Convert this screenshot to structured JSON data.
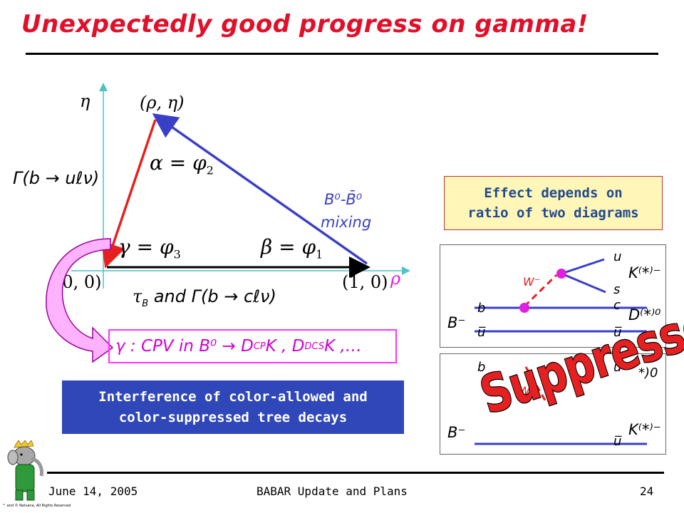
{
  "slide": {
    "title": "Unexpectedly good progress on gamma!"
  },
  "triangle": {
    "eta_axis": "η",
    "rho_axis": "ρ",
    "apex": "(ρ, η)",
    "origin": "(0, 0)",
    "unit_point": "(1, 0)",
    "alpha": "α = φ",
    "alpha_sub": "2",
    "beta": "β = φ",
    "beta_sub": "1",
    "gamma": "γ = φ",
    "gamma_sub": "3",
    "left_side": "Γ(b → uℓν)",
    "right_side_1": "B⁰-B̄⁰",
    "right_side_2": "mixing",
    "base": "τ",
    "base_sub": "B",
    "base_rest": " and Γ(b → cℓν)"
  },
  "cpv": {
    "text": "γ : CPV in B⁰ → D",
    "sub1": "CP",
    "mid": "K , D",
    "sub2": "DCS",
    "tail": "K ,…"
  },
  "effect_box": {
    "line1": "Effect depends on",
    "line2": "ratio of two diagrams"
  },
  "interference_box": {
    "line1": "Interference of color-allowed and",
    "line2": "color-suppressed tree decays"
  },
  "diagram_top": {
    "b": "b",
    "ubar_bottom": "u̅",
    "Bminus": "B⁻",
    "W": "W⁻",
    "u_top": "u",
    "s": "s",
    "c": "c",
    "ubar_right": "u̅",
    "K": "K⁽*⁾⁻",
    "D": "D⁽*⁾⁰"
  },
  "diagram_bottom": {
    "b": "b",
    "Bminus": "B⁻",
    "W": "W⁻",
    "u_top": "u",
    "ubar_bottom": "u̅",
    "K": "K⁽*⁾⁻",
    "D_partial": "*)0",
    "stamp": "Suppressed"
  },
  "footer": {
    "date": "June 14, 2005",
    "center": "BABAR Update and Plans",
    "page": "24"
  },
  "logo": {
    "caption": "™ and © Nelvana, All Rights Reserved"
  },
  "colors": {
    "title": "#e0102a",
    "axis": "#4fc1c8",
    "red_side": "#e62020",
    "blue_side": "#3a3fc8",
    "magenta": "#e020e0",
    "effect_box_bg": "#fff6b8",
    "interference_bg": "#2f47b8"
  }
}
